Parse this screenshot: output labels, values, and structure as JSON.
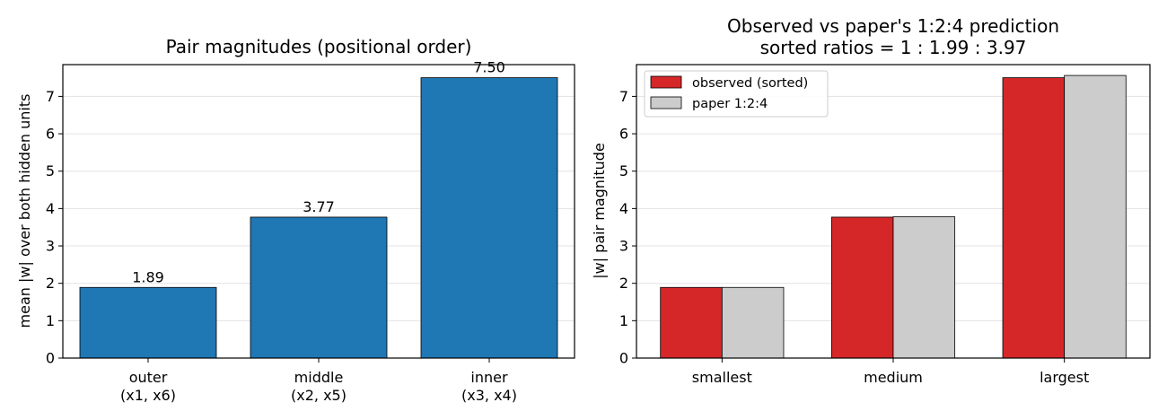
{
  "chart_data": [
    {
      "type": "bar",
      "title": "Pair magnitudes (positional order)",
      "ylabel": "mean |w| over both hidden units",
      "xlabel": "",
      "categories": [
        [
          "outer",
          "(x1, x6)"
        ],
        [
          "middle",
          "(x2, x5)"
        ],
        [
          "inner",
          "(x3, x4)"
        ]
      ],
      "values": [
        1.89,
        3.77,
        7.5
      ],
      "value_labels": [
        "1.89",
        "3.77",
        "7.50"
      ],
      "ylim": [
        0,
        7.85
      ],
      "yticks": [
        0,
        1,
        2,
        3,
        4,
        5,
        6,
        7
      ],
      "grid": "y",
      "color": "#1f77b4"
    },
    {
      "type": "bar",
      "title": "Observed vs paper's 1:2:4 prediction",
      "subtitle": "sorted ratios = 1 : 1.99 : 3.97",
      "ylabel": "|w| pair magnitude",
      "xlabel": "",
      "categories": [
        "smallest",
        "medium",
        "largest"
      ],
      "series": [
        {
          "name": "observed (sorted)",
          "values": [
            1.89,
            3.77,
            7.5
          ],
          "color": "#d62728"
        },
        {
          "name": "paper 1:2:4",
          "values": [
            1.89,
            3.78,
            7.56
          ],
          "color": "#cccccc"
        }
      ],
      "ylim": [
        0,
        7.85
      ],
      "yticks": [
        0,
        1,
        2,
        3,
        4,
        5,
        6,
        7
      ],
      "grid": "y",
      "legend": "top-left"
    }
  ]
}
